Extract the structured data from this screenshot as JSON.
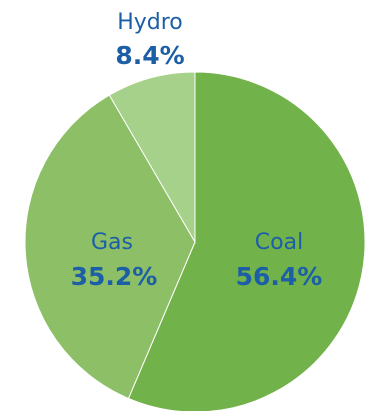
{
  "chart_data": {
    "type": "pie",
    "slices": [
      {
        "name": "Coal",
        "value": 56.4,
        "label": "56.4%",
        "color": "#72b24a"
      },
      {
        "name": "Gas",
        "value": 35.2,
        "label": "35.2%",
        "color": "#8cbf66"
      },
      {
        "name": "Hydro",
        "value": 8.4,
        "label": "8.4%",
        "color": "#a6d18a"
      }
    ],
    "label_color": "#1d5fa6",
    "slice_stroke_color": "#ffffff",
    "start_angle_deg": 0,
    "direction": "clockwise"
  }
}
